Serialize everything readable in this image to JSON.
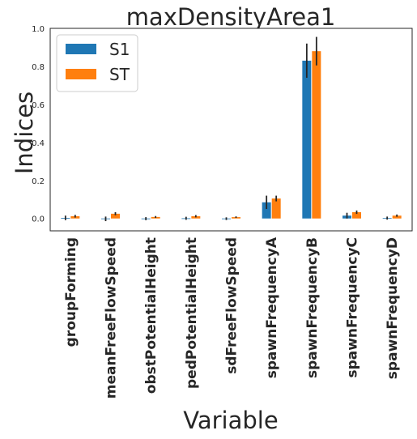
{
  "chart_data": {
    "type": "bar",
    "title": "maxDensityArea1",
    "xlabel": "Variable",
    "ylabel": "Indices",
    "categories": [
      "groupForming",
      "meanFreeFlowSpeed",
      "obstPotentialHeight",
      "pedPotentialHeight",
      "sdFreeFlowSpeed",
      "spawnFrequencyA",
      "spawnFrequencyB",
      "spawnFrequencyC",
      "spawnFrequencyD"
    ],
    "series": [
      {
        "name": "S1",
        "color": "#1f77b4",
        "values": [
          0.003,
          -0.002,
          -0.001,
          0.001,
          -0.001,
          0.085,
          0.83,
          0.015,
          0.002
        ],
        "errors": [
          0.012,
          0.012,
          0.008,
          0.008,
          0.007,
          0.035,
          0.09,
          0.015,
          0.008
        ]
      },
      {
        "name": "ST",
        "color": "#ff7f0e",
        "values": [
          0.012,
          0.025,
          0.008,
          0.012,
          0.007,
          0.105,
          0.88,
          0.033,
          0.015
        ],
        "errors": [
          0.007,
          0.008,
          0.005,
          0.006,
          0.004,
          0.015,
          0.075,
          0.009,
          0.006
        ]
      }
    ],
    "ylim": [
      -0.065,
      1.0
    ],
    "yticks": [
      "0.0",
      "0.2",
      "0.4",
      "0.6",
      "0.8",
      "1.0"
    ],
    "grid": false,
    "legend_position": "top-left"
  }
}
